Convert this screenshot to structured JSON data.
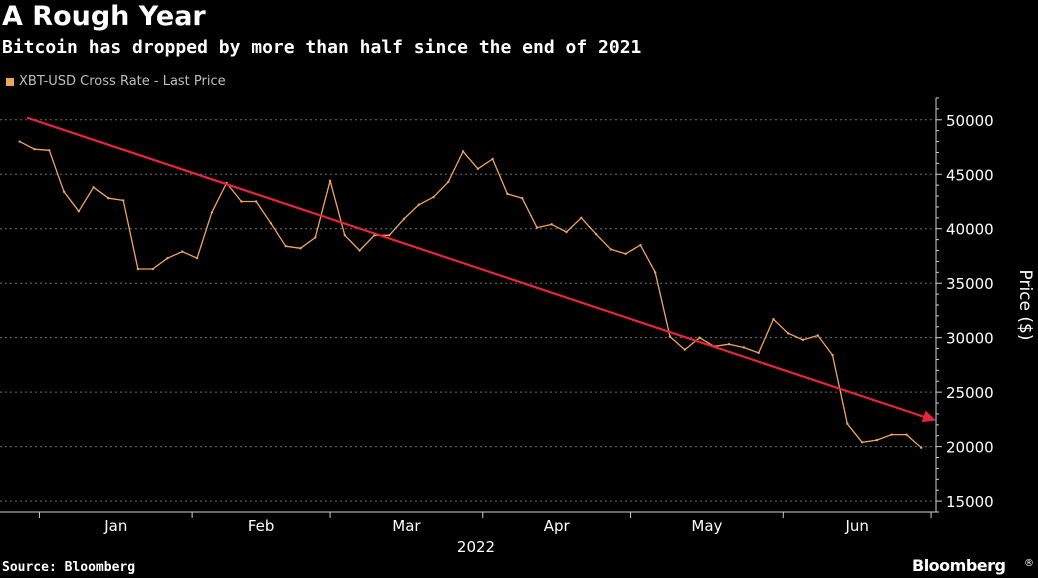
{
  "header": {
    "title": "A Rough Year",
    "subtitle": "Bitcoin has dropped by more than half since the end of 2021"
  },
  "footer": {
    "source": "Source: Bloomberg",
    "brand": "Bloomberg"
  },
  "colors": {
    "background": "#000000",
    "series": "#f0a45d",
    "trend_arrow": "#e8243c",
    "axis": "#d0d0d0",
    "grid": "#6e6e6e"
  },
  "chart_data": {
    "type": "line",
    "title": "A Rough Year",
    "subtitle": "Bitcoin has dropped by more than half since the end of 2021",
    "xlabel": "2022",
    "ylabel": "Price ($)",
    "ylim": [
      14000,
      52000
    ],
    "grid": true,
    "grid_style": "dashed horizontal",
    "legend_position": "top-left",
    "y_ticks": [
      15000,
      20000,
      25000,
      30000,
      35000,
      40000,
      45000,
      50000
    ],
    "x_tick_labels": [
      "Jan",
      "Feb",
      "Mar",
      "Apr",
      "May",
      "Jun"
    ],
    "year_label": "2022",
    "trend_annotation": {
      "type": "arrow",
      "start": {
        "x": "2022-01-01",
        "y": 50200
      },
      "end": {
        "x": "2022-06-30",
        "y": 22400
      }
    },
    "series": [
      {
        "name": "XBT-USD Cross Rate - Last Price",
        "x": [
          "2021-12-28",
          "2021-12-31",
          "2022-01-03",
          "2022-01-06",
          "2022-01-09",
          "2022-01-12",
          "2022-01-15",
          "2022-01-18",
          "2022-01-21",
          "2022-01-24",
          "2022-01-27",
          "2022-01-30",
          "2022-02-02",
          "2022-02-05",
          "2022-02-08",
          "2022-02-11",
          "2022-02-14",
          "2022-02-17",
          "2022-02-20",
          "2022-02-23",
          "2022-02-26",
          "2022-03-01",
          "2022-03-04",
          "2022-03-07",
          "2022-03-10",
          "2022-03-13",
          "2022-03-16",
          "2022-03-19",
          "2022-03-22",
          "2022-03-25",
          "2022-03-28",
          "2022-03-31",
          "2022-04-03",
          "2022-04-06",
          "2022-04-09",
          "2022-04-12",
          "2022-04-15",
          "2022-04-18",
          "2022-04-21",
          "2022-04-24",
          "2022-04-27",
          "2022-04-30",
          "2022-05-03",
          "2022-05-06",
          "2022-05-09",
          "2022-05-12",
          "2022-05-15",
          "2022-05-18",
          "2022-05-21",
          "2022-05-24",
          "2022-05-27",
          "2022-05-30",
          "2022-06-02",
          "2022-06-05",
          "2022-06-08",
          "2022-06-11",
          "2022-06-14",
          "2022-06-17",
          "2022-06-20",
          "2022-06-23",
          "2022-06-26",
          "2022-06-29"
        ],
        "values": [
          48000,
          47300,
          47200,
          43400,
          41600,
          43800,
          42800,
          42600,
          36300,
          36300,
          37300,
          37900,
          37300,
          41500,
          44200,
          42500,
          42500,
          40500,
          38400,
          38200,
          39200,
          44400,
          39400,
          38000,
          39400,
          39400,
          40900,
          42200,
          42900,
          44300,
          47100,
          45500,
          46400,
          43200,
          42800,
          40100,
          40400,
          39700,
          41000,
          39500,
          38100,
          37700,
          38500,
          36000,
          30100,
          28900,
          30000,
          29200,
          29400,
          29100,
          28600,
          31700,
          30400,
          29800,
          30200,
          28400,
          22100,
          20400,
          20600,
          21100,
          21100,
          19900
        ]
      }
    ]
  }
}
